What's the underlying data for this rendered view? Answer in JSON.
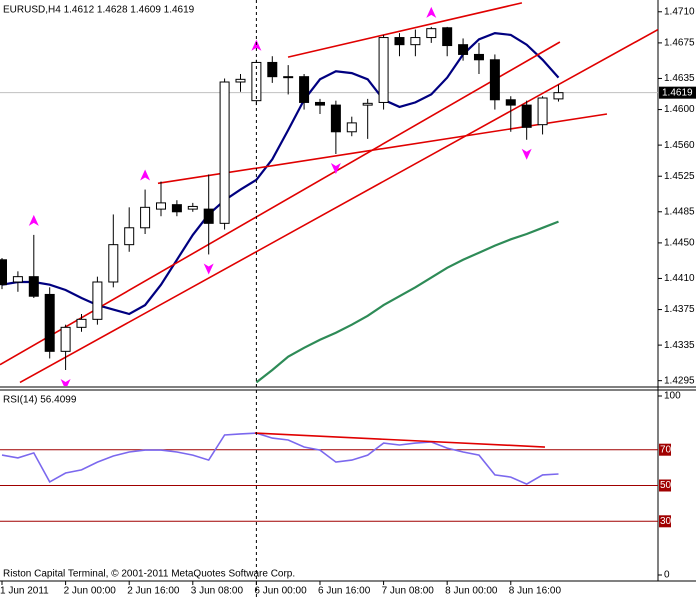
{
  "chart_data": [
    {
      "type": "candlestick",
      "title": "EURUSD,H4  1.4612 1.4628 1.4609 1.4619",
      "categories": [
        "1 Jun 2011",
        null,
        null,
        null,
        "2 Jun 00:00",
        null,
        null,
        null,
        "2 Jun 16:00",
        null,
        null,
        null,
        "3 Jun 08:00",
        null,
        null,
        null,
        "6 Jun 00:00",
        null,
        null,
        null,
        "6 Jun 16:00",
        null,
        null,
        null,
        "7 Jun 08:00",
        null,
        null,
        null,
        "8 Jun 00:00",
        null,
        null,
        null,
        "8 Jun 16:00",
        null,
        null,
        null
      ],
      "open": [
        1.4431,
        1.4406,
        1.4412,
        1.4392,
        1.4328,
        1.4355,
        1.4364,
        1.4406,
        1.4448,
        1.4467,
        1.4488,
        1.4493,
        1.4488,
        1.4488,
        1.4472,
        1.4631,
        1.461,
        1.4653,
        1.4637,
        1.4637,
        1.4608,
        1.4605,
        1.4575,
        1.4605,
        1.4608,
        1.4681,
        1.4673,
        1.4681,
        1.4692,
        1.4673,
        1.4662,
        1.4656,
        1.4611,
        1.4605,
        1.4583,
        1.4612
      ],
      "high": [
        1.4433,
        1.4418,
        1.4459,
        1.44,
        1.4358,
        1.437,
        1.4412,
        1.4482,
        1.449,
        1.451,
        1.4519,
        1.4498,
        1.4495,
        1.4527,
        1.4635,
        1.464,
        1.4656,
        1.466,
        1.465,
        1.464,
        1.4612,
        1.461,
        1.4592,
        1.4612,
        1.4684,
        1.4686,
        1.469,
        1.4693,
        1.4693,
        1.468,
        1.4675,
        1.4662,
        1.4615,
        1.461,
        1.4615,
        1.4628
      ],
      "low": [
        1.4398,
        1.4395,
        1.4388,
        1.432,
        1.4307,
        1.435,
        1.4358,
        1.44,
        1.444,
        1.446,
        1.448,
        1.448,
        1.4485,
        1.4437,
        1.4465,
        1.462,
        1.4605,
        1.463,
        1.4617,
        1.46,
        1.4595,
        1.455,
        1.457,
        1.4567,
        1.46,
        1.466,
        1.466,
        1.4675,
        1.466,
        1.4655,
        1.464,
        1.46,
        1.4575,
        1.4566,
        1.4572,
        1.4609
      ],
      "close": [
        1.4403,
        1.4412,
        1.439,
        1.4328,
        1.4355,
        1.4364,
        1.4406,
        1.4448,
        1.4467,
        1.449,
        1.4495,
        1.4485,
        1.4491,
        1.4472,
        1.4631,
        1.4634,
        1.4653,
        1.4637,
        1.4637,
        1.4608,
        1.4605,
        1.4575,
        1.4585,
        1.4607,
        1.4681,
        1.4673,
        1.4681,
        1.4691,
        1.4672,
        1.4662,
        1.4656,
        1.4611,
        1.4605,
        1.458,
        1.4613,
        1.4619
      ],
      "lines": [
        {
          "color": "#000080",
          "values": [
            1.4403,
            1.4406,
            1.4406,
            1.4403,
            1.4397,
            1.4388,
            1.438,
            1.4375,
            1.437,
            1.438,
            1.4403,
            1.4431,
            1.4459,
            1.4482,
            1.4498,
            1.451,
            1.4521,
            1.4544,
            1.4577,
            1.4611,
            1.4634,
            1.4643,
            1.4641,
            1.4634,
            1.4611,
            1.4603,
            1.4608,
            1.4617,
            1.4636,
            1.4662,
            1.4679,
            1.4686,
            1.4684,
            1.4673,
            1.4656,
            1.4636
          ]
        },
        {
          "color": "#2e8b57",
          "values": [
            null,
            null,
            null,
            null,
            null,
            null,
            null,
            null,
            null,
            null,
            null,
            null,
            null,
            null,
            null,
            null,
            1.4293,
            1.4307,
            1.4322,
            1.4332,
            1.4341,
            1.4349,
            1.4358,
            1.4368,
            1.438,
            1.439,
            1.44,
            1.4411,
            1.4422,
            1.4431,
            1.4439,
            1.4447,
            1.4454,
            1.446,
            1.4467,
            1.4474
          ]
        }
      ],
      "trendlines": [
        {
          "x": [
            -0.126,
            35.09
          ],
          "y": [
            1.4313,
            1.4676
          ]
        },
        {
          "x": [
            1.13,
            41.26
          ],
          "y": [
            1.4293,
            1.469
          ]
        },
        {
          "x": [
            17.99,
            32.7
          ],
          "y": [
            1.4659,
            1.472
          ]
        },
        {
          "x": [
            9.81,
            38.05
          ],
          "y": [
            1.4517,
            1.4595
          ]
        }
      ],
      "trend_color": "#e00000",
      "up_arrows": [
        2,
        9,
        16,
        27
      ],
      "down_arrows": [
        4,
        13,
        21,
        33
      ],
      "arrow_color": "#ff00ff",
      "current_price": 1.4619,
      "xlim": [
        -0.126,
        41.26
      ],
      "ylim": [
        1.4289,
        1.4721
      ],
      "yticks": [
        {
          "value": 1.471,
          "label": "1.4710"
        },
        1.4675,
        1.4635,
        {
          "value": 1.46,
          "label": "1.4600"
        },
        {
          "value": 1.456,
          "label": "1.4560"
        },
        1.4525,
        1.4485,
        {
          "value": 1.445,
          "label": "1.4450"
        },
        {
          "value": 1.441,
          "label": "1.4410"
        },
        1.4375,
        1.4335,
        1.4295
      ]
    },
    {
      "type": "line",
      "title": "RSI(14) 56.4099",
      "color": "#7b68ee",
      "values": [
        67.0,
        65.4,
        68.2,
        52.0,
        57.0,
        58.7,
        63.1,
        66.5,
        68.7,
        69.8,
        69.8,
        68.7,
        67.0,
        64.2,
        78.2,
        78.8,
        79.3,
        76.5,
        75.4,
        71.5,
        69.8,
        63.1,
        64.2,
        67.0,
        73.7,
        72.6,
        73.7,
        74.3,
        70.9,
        68.7,
        67.0,
        55.9,
        54.7,
        50.8,
        55.9,
        56.4099
      ],
      "trendlines": [
        {
          "x": [
            15.91,
            34.15
          ],
          "y": [
            79.3,
            71.5
          ]
        }
      ],
      "trend_color": "#e00000",
      "levels": [
        70,
        50,
        30
      ],
      "level_color": "#a00000",
      "ylim": [
        0,
        100
      ],
      "yticks": [
        100,
        0
      ]
    }
  ],
  "footer": "Riston Capital Terminal, © 2001-2011 MetaQuotes Software Corp."
}
